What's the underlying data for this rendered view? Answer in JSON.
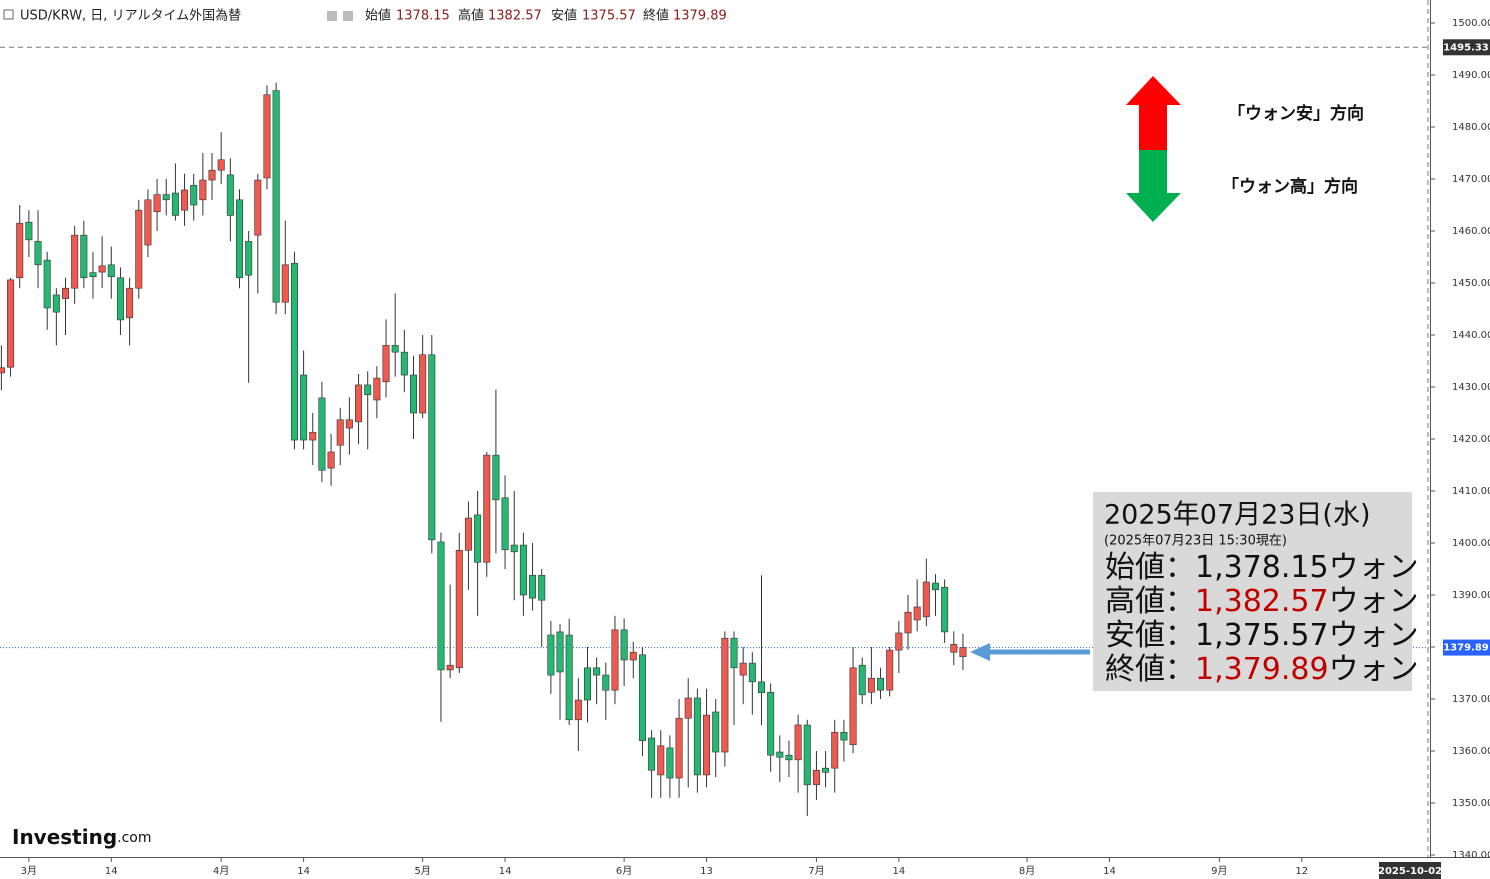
{
  "chart_data": {
    "type": "candlestick",
    "header": {
      "symbol": "USD/KRW, 日, リアルタイム外国為替",
      "open_label": "始値",
      "high_label": "高値",
      "low_label": "安値",
      "close_label": "終値"
    },
    "up_color": "#ef5a50",
    "down_color": "#26b872",
    "xlim": [
      "2025-02-26",
      "2025-10-02"
    ],
    "ylim": [
      1340,
      1500
    ],
    "yticks": [
      {
        "value": 1340,
        "label": "1340.00"
      },
      {
        "value": 1350,
        "label": "1350.00"
      },
      {
        "value": 1360,
        "label": "1360.00"
      },
      {
        "value": 1370,
        "label": "1370.00"
      },
      {
        "value": 1380,
        "label": "1380.00"
      },
      {
        "value": 1390,
        "label": "1390.00"
      },
      {
        "value": 1400,
        "label": "1400.00"
      },
      {
        "value": 1410,
        "label": "1410.00"
      },
      {
        "value": 1420,
        "label": "1420.00"
      },
      {
        "value": 1430,
        "label": "1430.00"
      },
      {
        "value": 1440,
        "label": "1440.00"
      },
      {
        "value": 1450,
        "label": "1450.00"
      },
      {
        "value": 1460,
        "label": "1460.00"
      },
      {
        "value": 1470,
        "label": "1470.00"
      },
      {
        "value": 1480,
        "label": "1480.00"
      },
      {
        "value": 1490,
        "label": "1490.00"
      },
      {
        "value": 1500,
        "label": "1500.00"
      }
    ],
    "xticks": [
      {
        "value": "2025-03-03",
        "label": "3月"
      },
      {
        "value": "2025-03-14",
        "label": "14"
      },
      {
        "value": "2025-04-01",
        "label": "4月"
      },
      {
        "value": "2025-04-14",
        "label": "14"
      },
      {
        "value": "2025-05-01",
        "label": "5月"
      },
      {
        "value": "2025-05-14",
        "label": "14"
      },
      {
        "value": "2025-06-02",
        "label": "6月"
      },
      {
        "value": "2025-06-13",
        "label": "13"
      },
      {
        "value": "2025-07-01",
        "label": "7月"
      },
      {
        "value": "2025-07-14",
        "label": "14"
      },
      {
        "value": "2025-08-01",
        "label": "8月"
      },
      {
        "value": "2025-08-14",
        "label": "14"
      },
      {
        "value": "2025-09-01",
        "label": "9月"
      },
      {
        "value": "2025-09-12",
        "label": "12"
      }
    ],
    "crosshair_y": 1495.33,
    "last_price": 1379.89,
    "x": [
      "2025-02-26",
      "2025-02-27",
      "2025-02-28",
      "2025-03-03",
      "2025-03-04",
      "2025-03-05",
      "2025-03-06",
      "2025-03-07",
      "2025-03-10",
      "2025-03-11",
      "2025-03-12",
      "2025-03-13",
      "2025-03-14",
      "2025-03-17",
      "2025-03-18",
      "2025-03-19",
      "2025-03-20",
      "2025-03-21",
      "2025-03-24",
      "2025-03-25",
      "2025-03-26",
      "2025-03-27",
      "2025-03-28",
      "2025-03-31",
      "2025-04-01",
      "2025-04-02",
      "2025-04-03",
      "2025-04-04",
      "2025-04-07",
      "2025-04-08",
      "2025-04-09",
      "2025-04-10",
      "2025-04-11",
      "2025-04-14",
      "2025-04-15",
      "2025-04-16",
      "2025-04-17",
      "2025-04-18",
      "2025-04-21",
      "2025-04-22",
      "2025-04-23",
      "2025-04-24",
      "2025-04-25",
      "2025-04-28",
      "2025-04-29",
      "2025-04-30",
      "2025-05-01",
      "2025-05-02",
      "2025-05-05",
      "2025-05-06",
      "2025-05-07",
      "2025-05-08",
      "2025-05-09",
      "2025-05-12",
      "2025-05-13",
      "2025-05-14",
      "2025-05-15",
      "2025-05-16",
      "2025-05-19",
      "2025-05-20",
      "2025-05-21",
      "2025-05-22",
      "2025-05-23",
      "2025-05-26",
      "2025-05-27",
      "2025-05-28",
      "2025-05-29",
      "2025-05-30",
      "2025-06-02",
      "2025-06-03",
      "2025-06-04",
      "2025-06-05",
      "2025-06-06",
      "2025-06-09",
      "2025-06-10",
      "2025-06-11",
      "2025-06-12",
      "2025-06-13",
      "2025-06-16",
      "2025-06-17",
      "2025-06-18",
      "2025-06-19",
      "2025-06-20",
      "2025-06-23",
      "2025-06-24",
      "2025-06-25",
      "2025-06-26",
      "2025-06-27",
      "2025-06-30",
      "2025-07-01",
      "2025-07-02",
      "2025-07-03",
      "2025-07-04",
      "2025-07-07",
      "2025-07-08",
      "2025-07-09",
      "2025-07-10",
      "2025-07-11",
      "2025-07-14",
      "2025-07-15",
      "2025-07-16",
      "2025-07-17",
      "2025-07-18",
      "2025-07-21",
      "2025-07-22",
      "2025-07-23"
    ],
    "open": [
      1432.7,
      1433.8,
      1451,
      1461.7,
      1458,
      1454.4,
      1447.7,
      1447,
      1449,
      1459.2,
      1452,
      1452.1,
      1453.5,
      1451,
      1443.3,
      1449,
      1457.3,
      1463.7,
      1467,
      1467.3,
      1464,
      1468.8,
      1466,
      1469.8,
      1471.7,
      1470.8,
      1466,
      1458,
      1459.2,
      1470.2,
      1487,
      1446.3,
      1453.8,
      1432.3,
      1419.8,
      1427.9,
      1414.4,
      1418.8,
      1422.1,
      1423.3,
      1430.4,
      1427.5,
      1431,
      1438,
      1436.7,
      1432.3,
      1425,
      1436.2,
      1400.2,
      1375.6,
      1376,
      1398.6,
      1405.4,
      1396.3,
      1416.9,
      1408.7,
      1399.6,
      1399.6,
      1393.8,
      1393.8,
      1382.3,
      1382.9,
      1382.3,
      1366,
      1376,
      1376,
      1374.6,
      1371.7,
      1383.3,
      1377.5,
      1378.5,
      1362.5,
      1355.4,
      1360.6,
      1354.8,
      1366.3,
      1370.2,
      1355.4,
      1367.5,
      1359.8,
      1381.7,
      1374.6,
      1376.9,
      1373.3,
      1371.3,
      1359.8,
      1359.2,
      1358.3,
      1365,
      1353.5,
      1356.7,
      1356.7,
      1363.6,
      1361.2,
      1376.5,
      1371.3,
      1374,
      1371.7,
      1379.4,
      1382.7,
      1385.2,
      1385.8,
      1392.3,
      1391.5,
      1379,
      1378.15
    ],
    "high": [
      1438,
      1451,
      1465,
      1464,
      1464,
      1456,
      1449,
      1451,
      1461,
      1462,
      1456,
      1459,
      1457,
      1453,
      1451,
      1466,
      1468,
      1470,
      1470,
      1473,
      1471,
      1471,
      1475,
      1475,
      1479,
      1474,
      1468,
      1460,
      1471,
      1488,
      1488.5,
      1462,
      1456,
      1437,
      1425,
      1431,
      1421,
      1426,
      1428,
      1432.5,
      1433,
      1434,
      1443,
      1448,
      1441,
      1436,
      1440,
      1440,
      1402,
      1392,
      1402,
      1408,
      1410,
      1417.5,
      1429.5,
      1413,
      1410,
      1402,
      1400,
      1395,
      1385,
      1384.4,
      1385.4,
      1374,
      1380,
      1378,
      1377,
      1386,
      1385.5,
      1381,
      1380,
      1364,
      1364,
      1363,
      1370,
      1374,
      1372,
      1372,
      1370,
      1383,
      1383,
      1380,
      1379,
      1393.8,
      1373,
      1363,
      1362,
      1367,
      1366,
      1360,
      1360,
      1366,
      1366,
      1380,
      1378,
      1380,
      1376,
      1380,
      1385,
      1390,
      1393,
      1397,
      1394,
      1393,
      1383,
      1382.57
    ],
    "low": [
      1429.4,
      1432,
      1449,
      1455,
      1449,
      1441,
      1438,
      1440,
      1446,
      1449,
      1447,
      1449,
      1447,
      1440,
      1438,
      1447,
      1455,
      1460,
      1463,
      1462,
      1461,
      1462,
      1463,
      1466,
      1469,
      1458,
      1449,
      1430.8,
      1448,
      1468,
      1444,
      1444,
      1418,
      1418,
      1415,
      1411.7,
      1411,
      1415,
      1417,
      1419,
      1418,
      1424,
      1428,
      1432,
      1429,
      1420,
      1424,
      1398,
      1365.6,
      1374,
      1375,
      1391,
      1386,
      1393.5,
      1398,
      1395,
      1389,
      1386,
      1387,
      1380,
      1371,
      1366,
      1365,
      1360,
      1365.5,
      1369,
      1366,
      1369,
      1372.5,
      1374,
      1359,
      1351,
      1351,
      1351,
      1351,
      1353,
      1352,
      1353,
      1355,
      1357,
      1365,
      1369,
      1367,
      1365,
      1356,
      1354,
      1355,
      1352,
      1347.5,
      1350.6,
      1353,
      1352,
      1358,
      1359.6,
      1369,
      1369,
      1370,
      1370.5,
      1375,
      1379.5,
      1383,
      1384,
      1386,
      1380.8,
      1376.5,
      1375.57
    ],
    "close": [
      1433.7,
      1450.6,
      1461.5,
      1458.3,
      1453.5,
      1445.2,
      1444.4,
      1449,
      1459.2,
      1451,
      1451.2,
      1453.3,
      1451.2,
      1442.9,
      1449,
      1464,
      1466,
      1467,
      1466,
      1463,
      1467.9,
      1465,
      1469.8,
      1471.7,
      1473.7,
      1463,
      1451,
      1451.5,
      1469.8,
      1486.2,
      1446.3,
      1453.5,
      1419.8,
      1419.8,
      1421.3,
      1414,
      1417.5,
      1423.7,
      1423.7,
      1430.4,
      1428.5,
      1431.7,
      1438,
      1436.7,
      1432.3,
      1425,
      1436.2,
      1400.6,
      1375.6,
      1376.5,
      1398.6,
      1404.8,
      1396.3,
      1416.9,
      1408.3,
      1398.7,
      1398.3,
      1390,
      1389.4,
      1389,
      1374.6,
      1375.2,
      1366,
      1369.8,
      1369.8,
      1374.6,
      1371.7,
      1383.3,
      1377.5,
      1379,
      1362,
      1356.3,
      1361,
      1354.8,
      1366.3,
      1370.2,
      1355.4,
      1366.9,
      1359.8,
      1381.7,
      1376,
      1376.9,
      1373.3,
      1371.2,
      1359.2,
      1358.8,
      1358.3,
      1365,
      1353.5,
      1356.3,
      1355.9,
      1363.6,
      1362.1,
      1376,
      1370.8,
      1374,
      1371.7,
      1379.4,
      1382.7,
      1386.7,
      1387.7,
      1392.5,
      1391,
      1382.9,
      1380.5,
      1379.89
    ],
    "annotations": {
      "up": "「ウォン安」方向",
      "down": "「ウォン高」方向"
    },
    "info_box": {
      "date": "2025年07月23日(水)",
      "time": "(2025年07月23日 15:30現在)",
      "unit": "ウォン",
      "rows": [
        {
          "name": "始値：",
          "value": "1,378.15",
          "color": "#111111"
        },
        {
          "name": "高値：",
          "value": "1,382.57",
          "color": "#c00000"
        },
        {
          "name": "安値：",
          "value": "1,375.57",
          "color": "#111111"
        },
        {
          "name": "終値：",
          "value": "1,379.89",
          "color": "#c00000"
        }
      ]
    },
    "logo": {
      "name": "Investing",
      "suffix": ".com"
    }
  }
}
